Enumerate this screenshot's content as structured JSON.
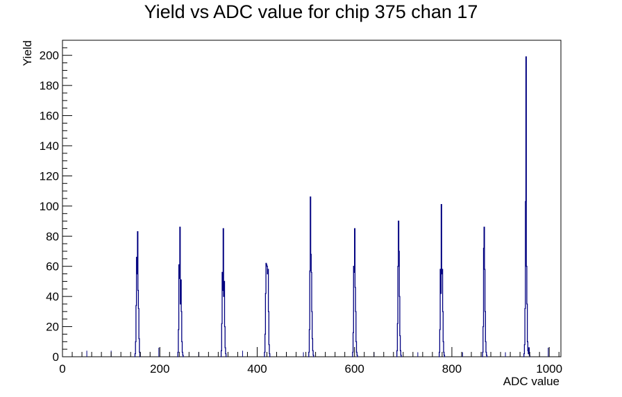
{
  "chart_data": {
    "type": "line",
    "title": "Yield vs ADC value for chip 375 chan 17",
    "xlabel": "ADC value",
    "ylabel": "Yield",
    "xlim": [
      0,
      1024
    ],
    "ylim": [
      0,
      210
    ],
    "x_ticks": [
      0,
      200,
      400,
      600,
      800,
      1000
    ],
    "y_ticks": [
      0,
      20,
      40,
      60,
      80,
      100,
      120,
      140,
      160,
      180,
      200
    ],
    "grid": false,
    "line_color": "#000080",
    "peaks": [
      {
        "x": [
          148,
          149,
          150,
          151,
          152,
          153,
          154,
          155,
          156,
          157,
          158,
          159
        ],
        "y": [
          0,
          2,
          10,
          34,
          66,
          55,
          83,
          44,
          32,
          12,
          3,
          0
        ]
      },
      {
        "x": [
          236,
          237,
          238,
          239,
          240,
          241,
          242,
          243,
          244,
          245,
          246,
          247,
          248
        ],
        "y": [
          0,
          3,
          18,
          61,
          52,
          86,
          35,
          51,
          30,
          10,
          3,
          1,
          0
        ]
      },
      {
        "x": [
          325,
          326,
          327,
          328,
          329,
          330,
          331,
          332,
          333,
          334,
          335,
          336
        ],
        "y": [
          0,
          4,
          22,
          56,
          44,
          85,
          40,
          50,
          20,
          6,
          2,
          0
        ]
      },
      {
        "x": [
          414,
          415,
          416,
          417,
          418,
          419,
          420,
          421,
          422,
          423,
          424,
          425,
          426
        ],
        "y": [
          0,
          3,
          15,
          42,
          62,
          61,
          60,
          55,
          58,
          30,
          8,
          2,
          0
        ]
      },
      {
        "x": [
          505,
          506,
          507,
          508,
          509,
          510,
          511,
          512,
          513,
          514,
          515,
          516
        ],
        "y": [
          0,
          3,
          18,
          57,
          106,
          68,
          56,
          30,
          12,
          4,
          1,
          0
        ]
      },
      {
        "x": [
          595,
          596,
          597,
          598,
          599,
          600,
          601,
          602,
          603,
          604,
          605,
          606
        ],
        "y": [
          0,
          3,
          16,
          60,
          56,
          85,
          46,
          30,
          10,
          3,
          1,
          0
        ]
      },
      {
        "x": [
          686,
          687,
          688,
          689,
          690,
          691,
          692,
          693,
          694,
          695,
          696
        ],
        "y": [
          0,
          4,
          22,
          60,
          90,
          70,
          40,
          14,
          4,
          1,
          0
        ]
      },
      {
        "x": [
          773,
          774,
          775,
          776,
          777,
          778,
          779,
          780,
          781,
          782,
          783,
          784,
          785
        ],
        "y": [
          0,
          3,
          18,
          58,
          42,
          101,
          55,
          58,
          30,
          10,
          3,
          1,
          0
        ]
      },
      {
        "x": [
          862,
          863,
          864,
          865,
          866,
          867,
          868,
          869,
          870,
          871,
          872
        ],
        "y": [
          0,
          3,
          20,
          72,
          86,
          58,
          30,
          10,
          3,
          1,
          0
        ]
      },
      {
        "x": [
          947,
          948,
          949,
          950,
          951,
          952,
          953,
          954,
          955,
          956,
          957,
          958,
          959,
          960
        ],
        "y": [
          0,
          2,
          8,
          32,
          103,
          199,
          60,
          35,
          10,
          4,
          2,
          6,
          1,
          0
        ]
      }
    ],
    "isolated_counts": [
      {
        "x": 50,
        "y": 4
      },
      {
        "x": 100,
        "y": 4
      },
      {
        "x": 198,
        "y": 6
      },
      {
        "x": 280,
        "y": 3
      },
      {
        "x": 370,
        "y": 4
      },
      {
        "x": 460,
        "y": 3
      },
      {
        "x": 495,
        "y": 3
      },
      {
        "x": 640,
        "y": 3
      },
      {
        "x": 730,
        "y": 3
      },
      {
        "x": 822,
        "y": 3
      },
      {
        "x": 910,
        "y": 3
      },
      {
        "x": 998,
        "y": 6
      }
    ]
  }
}
